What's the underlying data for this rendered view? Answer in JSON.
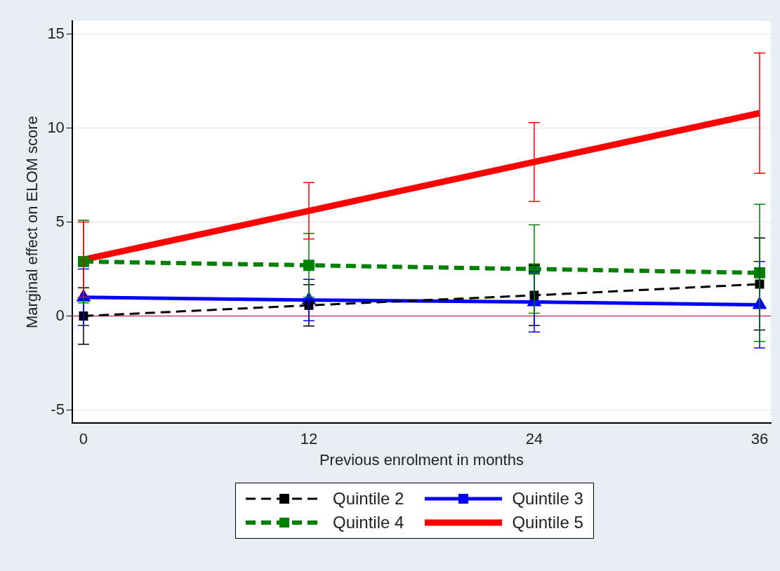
{
  "chart_data": {
    "type": "line",
    "xlabel": "Previous enrolment in months",
    "ylabel": "Marginal effect on ELOM score",
    "x": [
      0,
      12,
      24,
      36
    ],
    "xlim": [
      -0.6,
      36.6
    ],
    "xticks": [
      0,
      12,
      24,
      36
    ],
    "ylim": [
      -5.7,
      15.7
    ],
    "yticks": [
      -5,
      0,
      5,
      10,
      15
    ],
    "grid": "y",
    "legend": "bottom",
    "ref_lines": [
      {
        "axis": "y",
        "value": 0,
        "color": "#c8385a"
      }
    ],
    "series": [
      {
        "name": "Quintile 2",
        "color": "#000000",
        "values": [
          0,
          0.57,
          1.1,
          1.7
        ],
        "errors": [
          1.5,
          1.1,
          1.6,
          2.45
        ],
        "marker": "square",
        "line_style": "dashed"
      },
      {
        "name": "Quintile 3",
        "color": "#0000ff",
        "values": [
          1.0,
          0.85,
          0.75,
          0.6
        ],
        "errors": [
          1.5,
          1.1,
          1.6,
          2.3
        ],
        "marker": "triangle",
        "line_style": "solid"
      },
      {
        "name": "Quintile 4",
        "color": "#008000",
        "values": [
          2.9,
          2.7,
          2.5,
          2.3
        ],
        "errors": [
          2.2,
          1.7,
          2.35,
          3.65
        ],
        "marker": "square",
        "line_style": "dashed"
      },
      {
        "name": "Quintile 5",
        "color": "#ff0000",
        "values": [
          3.0,
          5.6,
          8.2,
          10.8
        ],
        "errors": [
          2.0,
          1.5,
          2.1,
          3.2
        ],
        "marker": "none",
        "line_style": "solid"
      }
    ]
  }
}
